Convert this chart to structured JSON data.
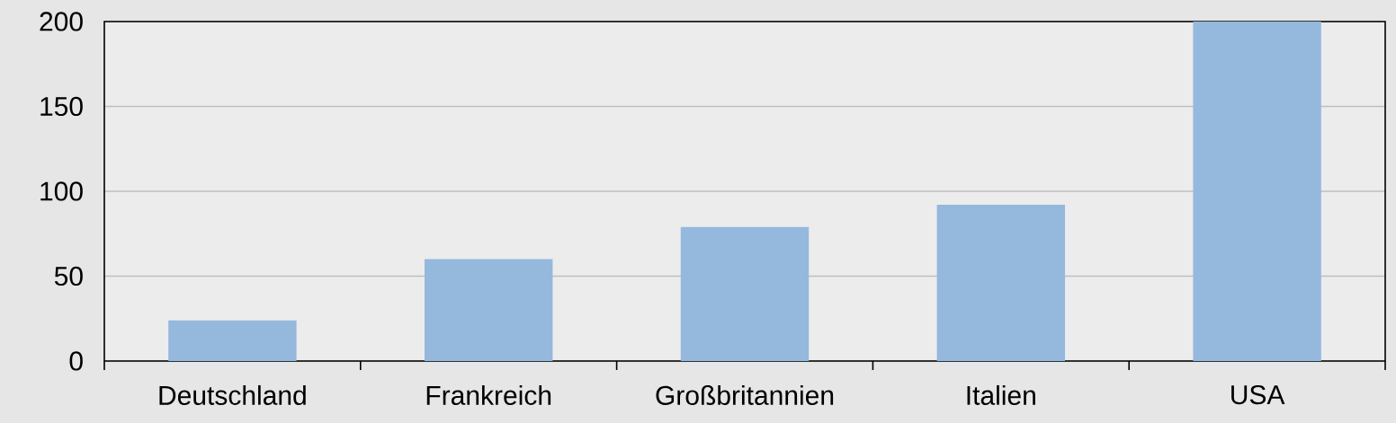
{
  "chart_data": {
    "type": "bar",
    "categories": [
      "Deutschland",
      "Frankreich",
      "Großbritannien",
      "Italien",
      "USA"
    ],
    "values": [
      24,
      60,
      79,
      92,
      200
    ],
    "color": "#95b8dd",
    "ylim": [
      0,
      200
    ],
    "yticks": [
      0,
      50,
      100,
      150,
      200
    ],
    "grid": "y"
  }
}
